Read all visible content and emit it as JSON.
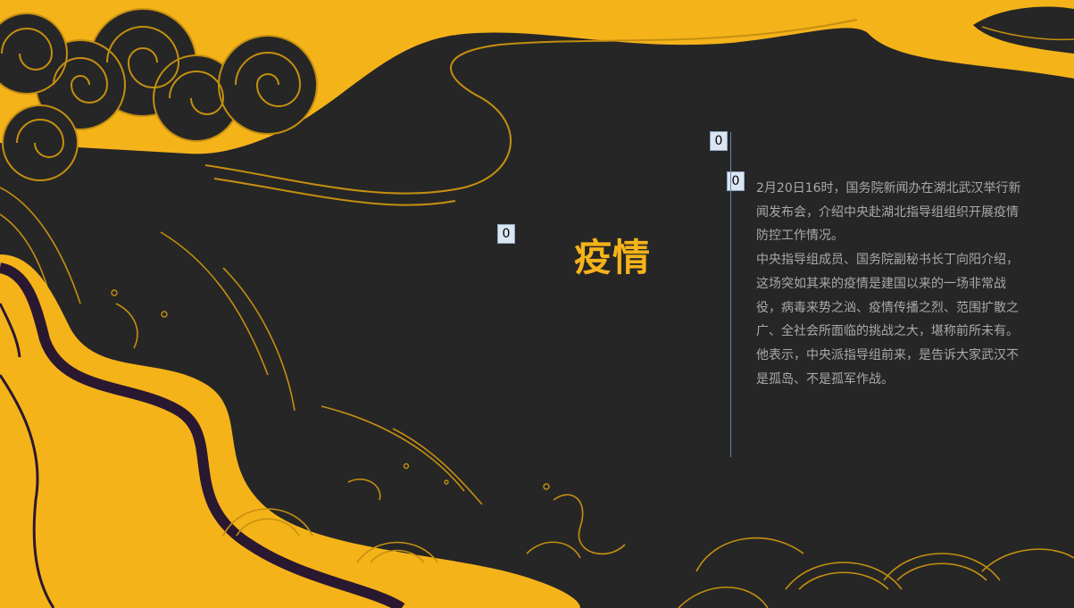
{
  "slide": {
    "title": "疫情",
    "markers": [
      "0",
      "0",
      "0"
    ],
    "paragraphs": [
      "2月20日16时，国务院新闻办在湖北武汉举行新闻发布会，介绍中央赴湖北指导组组织开展疫情防控工作情况。",
      "中央指导组成员、国务院副秘书长丁向阳介绍，这场突如其来的疫情是建国以来的一场非常战役，病毒来势之汹、疫情传播之烈、范围扩散之广、全社会所面临的挑战之大，堪称前所未有。他表示，中央派指导组前来，是告诉大家武汉不是孤岛、不是孤军作战。"
    ]
  },
  "colors": {
    "background": "#262626",
    "accent_yellow": "#f5b31a",
    "river_purple": "#2a1830",
    "text_gray": "#a9a9a9",
    "divider_blue": "#6c86aa"
  },
  "icons": [
    "cloud-decoration",
    "wave-decoration",
    "river-decoration"
  ]
}
